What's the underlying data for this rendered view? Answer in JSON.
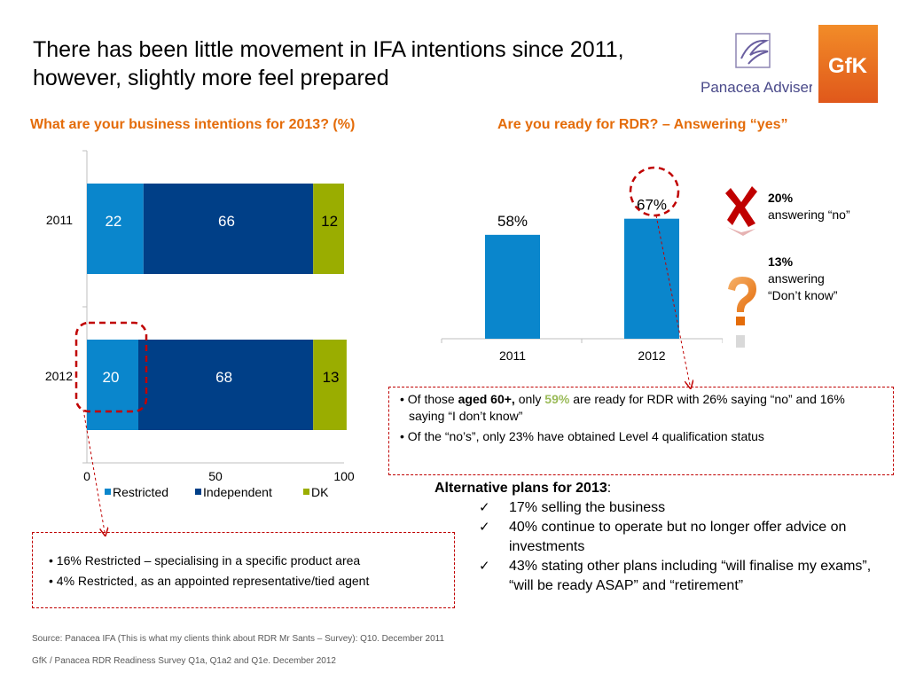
{
  "title_lines": [
    "There has been little movement in IFA intentions since 2011,",
    "however, slightly more feel prepared"
  ],
  "left_subhead": "What are your business intentions for 2013? (%)",
  "right_subhead": "Are you ready for RDR? – Answering “yes”",
  "chart_data": [
    {
      "type": "bar",
      "orientation": "horizontal",
      "stacked": true,
      "categories": [
        "2011",
        "2012"
      ],
      "series": [
        {
          "name": "Restricted",
          "values": [
            22,
            20
          ],
          "color": "#0a86cc"
        },
        {
          "name": "Independent",
          "values": [
            66,
            68
          ],
          "color": "#003f87"
        },
        {
          "name": "DK",
          "values": [
            12,
            13
          ],
          "color": "#9aad00"
        }
      ],
      "xlim": [
        0,
        100
      ],
      "xticks": [
        "0",
        "50",
        "100"
      ],
      "legend": "bottom"
    },
    {
      "type": "bar",
      "categories": [
        "2011",
        "2012"
      ],
      "values": [
        58,
        67
      ],
      "value_labels": [
        "58%",
        "67%"
      ],
      "ylim": [
        0,
        100
      ],
      "color": "#0a86cc"
    }
  ],
  "logos": {
    "panacea": "Panacea Adviser",
    "gfk": "GfK"
  },
  "ready_breakdown": [
    {
      "value": "20%",
      "label": "answering “no”",
      "icon": "red-cross-icon",
      "color": "#c00000"
    },
    {
      "value": "13%",
      "label_lines": [
        "answering",
        "“Don’t know”"
      ],
      "icon": "question-mark-icon",
      "color": "#e46c0a"
    }
  ],
  "right_box": {
    "b1_pre": "Of those ",
    "b1_bold": "aged 60+,",
    "b1_mid": " only ",
    "b1_hl": "59%",
    "b1_post": " are ready for RDR with 26% saying “no” and 16% saying “I don’t know”",
    "b2": "Of the “no’s”, only 23% have obtained Level 4 qualification status"
  },
  "left_box": {
    "b1": "16% Restricted – specialising in a specific product area",
    "b2": "4% Restricted, as an appointed representative/tied agent"
  },
  "alt_plans": {
    "heading": "Alternative plans for 2013",
    "items": [
      "17% selling the business",
      "40% continue to operate but no longer offer advice on investments",
      "43% stating other plans including “will finalise my exams”, “will be ready ASAP” and “retirement”"
    ]
  },
  "sources": [
    "Source: Panacea IFA (This is what my clients think about RDR Mr Sants – Survey): Q10. December 2011",
    "GfK / Panacea RDR Readiness Survey  Q1a, Q1a2 and Q1e. December 2012"
  ]
}
